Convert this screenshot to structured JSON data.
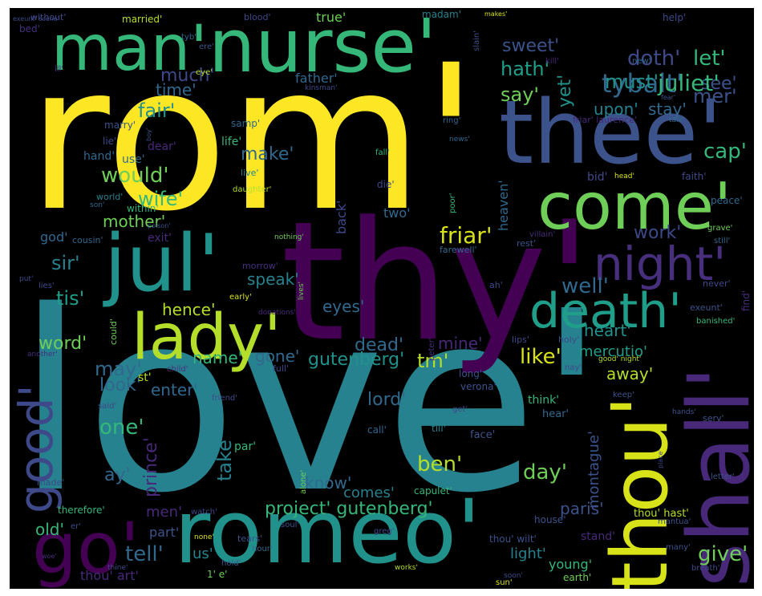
{
  "words": [
    {
      "id": "rom",
      "text": "rom'",
      "color": "#fde725"
    },
    {
      "id": "love",
      "text": "love'",
      "color": "#26828e"
    },
    {
      "id": "thy",
      "text": "thy'",
      "color": "#440154"
    },
    {
      "id": "nurse",
      "text": "nurse'",
      "color": "#35b779"
    },
    {
      "id": "man",
      "text": "man'",
      "color": "#35b779"
    },
    {
      "id": "thee",
      "text": "thee'",
      "color": "#3b528b"
    },
    {
      "id": "come",
      "text": "come'",
      "color": "#6ece58"
    },
    {
      "id": "jul",
      "text": "jul'",
      "color": "#21918c"
    },
    {
      "id": "lady",
      "text": "lady'",
      "color": "#b5de2b"
    },
    {
      "id": "night",
      "text": "night'",
      "color": "#472f7d"
    },
    {
      "id": "death",
      "text": "death'",
      "color": "#1f9e89"
    },
    {
      "id": "romeo",
      "text": "romeo'",
      "color": "#21918c"
    },
    {
      "id": "go",
      "text": "go'",
      "color": "#440154"
    },
    {
      "id": "thou",
      "text": "thou'",
      "color": "#d8e219"
    },
    {
      "id": "shall",
      "text": "shall'",
      "color": "#482878"
    },
    {
      "id": "good",
      "text": "good'",
      "color": "#3e4989"
    },
    {
      "id": "doth",
      "text": "doth'",
      "color": "#3e4989"
    },
    {
      "id": "let",
      "text": "let'",
      "color": "#35b779"
    },
    {
      "id": "tybalt",
      "text": "tybalt'",
      "color": "#31688e"
    },
    {
      "id": "sweet",
      "text": "sweet'",
      "color": "#3b528b"
    },
    {
      "id": "see",
      "text": "see'",
      "color": "#3b528b"
    },
    {
      "id": "hath",
      "text": "hath'",
      "color": "#1f9e89"
    },
    {
      "id": "juliet",
      "text": "juliet'",
      "color": "#35b779"
    },
    {
      "id": "much",
      "text": "much'",
      "color": "#3e4989"
    },
    {
      "id": "must",
      "text": "must'",
      "color": "#21918c"
    },
    {
      "id": "time",
      "text": "time'",
      "color": "#31688e"
    },
    {
      "id": "mer",
      "text": "mer'",
      "color": "#3b528b"
    },
    {
      "id": "say",
      "text": "say'",
      "color": "#6ece58"
    },
    {
      "id": "upon",
      "text": "upon'",
      "color": "#26828e"
    },
    {
      "id": "stay",
      "text": "stay'",
      "color": "#31688e"
    },
    {
      "id": "yet",
      "text": "yet'",
      "color": "#21918c"
    },
    {
      "id": "fair",
      "text": "fair'",
      "color": "#21918c"
    },
    {
      "id": "cap",
      "text": "cap'",
      "color": "#35b779"
    },
    {
      "id": "make",
      "text": "make'",
      "color": "#31688e"
    },
    {
      "id": "would",
      "text": "would'",
      "color": "#6ece58"
    },
    {
      "id": "wife",
      "text": "wife'",
      "color": "#35b779"
    },
    {
      "id": "mother",
      "text": "mother'",
      "color": "#6ece58"
    },
    {
      "id": "friar",
      "text": "friar'",
      "color": "#d8e219"
    },
    {
      "id": "work",
      "text": "work'",
      "color": "#3e4989"
    },
    {
      "id": "sir",
      "text": "sir'",
      "color": "#26828e"
    },
    {
      "id": "tis",
      "text": "tis'",
      "color": "#1f9e89"
    },
    {
      "id": "speak",
      "text": "speak'",
      "color": "#26828e"
    },
    {
      "id": "well",
      "text": "well'",
      "color": "#31688e"
    },
    {
      "id": "hence",
      "text": "hence'",
      "color": "#b5de2b"
    },
    {
      "id": "eyes",
      "text": "eyes'",
      "color": "#31688e"
    },
    {
      "id": "heart",
      "text": "heart'",
      "color": "#21918c"
    },
    {
      "id": "dead",
      "text": "dead'",
      "color": "#31688e"
    },
    {
      "id": "mine",
      "text": "mine'",
      "color": "#482878"
    },
    {
      "id": "word",
      "text": "word'",
      "color": "#6ece58"
    },
    {
      "id": "name",
      "text": "name'",
      "color": "#35b779"
    },
    {
      "id": "gone",
      "text": "gone'",
      "color": "#31688e"
    },
    {
      "id": "gutenberg1",
      "text": "gutenberg'",
      "color": "#21918c"
    },
    {
      "id": "tm",
      "text": "tm'",
      "color": "#b5de2b"
    },
    {
      "id": "like",
      "text": "like'",
      "color": "#d8e219"
    },
    {
      "id": "mercutio",
      "text": "mercutio'",
      "color": "#1f9e89"
    },
    {
      "id": "may",
      "text": "may'",
      "color": "#31688e"
    },
    {
      "id": "look",
      "text": "look'",
      "color": "#31688e"
    },
    {
      "id": "enter",
      "text": "enter'",
      "color": "#31688e"
    },
    {
      "id": "away",
      "text": "away'",
      "color": "#b5de2b"
    },
    {
      "id": "lord",
      "text": "lord'",
      "color": "#31688e"
    },
    {
      "id": "one",
      "text": "one'",
      "color": "#35b779"
    },
    {
      "id": "take",
      "text": "take'",
      "color": "#26828e"
    },
    {
      "id": "ben",
      "text": "ben'",
      "color": "#b5de2b"
    },
    {
      "id": "day",
      "text": "day'",
      "color": "#6ece58"
    },
    {
      "id": "prince",
      "text": "prince'",
      "color": "#482878"
    },
    {
      "id": "ay",
      "text": "ay'",
      "color": "#31688e"
    },
    {
      "id": "know",
      "text": "know'",
      "color": "#31688e"
    },
    {
      "id": "comes",
      "text": "comes'",
      "color": "#26828e"
    },
    {
      "id": "montague",
      "text": "montague'",
      "color": "#3b528b"
    },
    {
      "id": "project",
      "text": "project' gutenberg'",
      "color": "#35b779"
    },
    {
      "id": "paris",
      "text": "paris'",
      "color": "#3b528b"
    },
    {
      "id": "tell",
      "text": "tell'",
      "color": "#31688e"
    },
    {
      "id": "us",
      "text": "us'",
      "color": "#26828e"
    },
    {
      "id": "give",
      "text": "give'",
      "color": "#6ece58"
    },
    {
      "id": "light",
      "text": "light'",
      "color": "#26828e"
    },
    {
      "id": "young",
      "text": "young'",
      "color": "#35b779"
    },
    {
      "id": "old",
      "text": "old'",
      "color": "#35b779"
    },
    {
      "id": "part",
      "text": "part'",
      "color": "#3b528b"
    },
    {
      "id": "thouart",
      "text": "thou' art'",
      "color": "#482878"
    },
    {
      "id": "men",
      "text": "men'",
      "color": "#482878"
    },
    {
      "id": "back",
      "text": "back'",
      "color": "#3e4989"
    },
    {
      "id": "two",
      "text": "two'",
      "color": "#31688e"
    },
    {
      "id": "exit",
      "text": "exit'",
      "color": "#482878"
    },
    {
      "id": "god",
      "text": "god'",
      "color": "#31688e"
    },
    {
      "id": "st",
      "text": "st'",
      "color": "#b5de2b"
    },
    {
      "id": "heaven",
      "text": "heaven'",
      "color": "#31688e"
    },
    {
      "id": "father",
      "text": "father'",
      "color": "#31688e"
    },
    {
      "id": "hand",
      "text": "hand'",
      "color": "#31688e"
    },
    {
      "id": "dear",
      "text": "dear'",
      "color": "#482878"
    },
    {
      "id": "use",
      "text": "use'",
      "color": "#31688e"
    },
    {
      "id": "life",
      "text": "life'",
      "color": "#35b779"
    },
    {
      "id": "lie",
      "text": "lie'",
      "color": "#3e4989"
    },
    {
      "id": "marry",
      "text": "marry'",
      "color": "#3b528b"
    },
    {
      "id": "within",
      "text": "within'",
      "color": "#35b779"
    },
    {
      "id": "true",
      "text": "true'",
      "color": "#6ece58"
    },
    {
      "id": "madam",
      "text": "madam'",
      "color": "#26828e"
    },
    {
      "id": "married",
      "text": "married'",
      "color": "#b5de2b"
    },
    {
      "id": "blood",
      "text": "blood'",
      "color": "#3e4989"
    },
    {
      "id": "without",
      "text": "without'",
      "color": "#3e4989"
    },
    {
      "id": "bed",
      "text": "bed'",
      "color": "#472f7d"
    },
    {
      "id": "tyb",
      "text": "tyb'",
      "color": "#31688e"
    },
    {
      "id": "ere",
      "text": "ere'",
      "color": "#3b528b"
    },
    {
      "id": "help",
      "text": "help'",
      "color": "#3e4989"
    },
    {
      "id": "makes",
      "text": "makes'",
      "color": "#d8e219"
    },
    {
      "id": "slain",
      "text": "slain'",
      "color": "#3b528b"
    },
    {
      "id": "kill",
      "text": "kill'",
      "color": "#482878"
    },
    {
      "id": "new",
      "text": "new'",
      "color": "#31688e"
    },
    {
      "id": "fear",
      "text": "fear'",
      "color": "#3b528b"
    },
    {
      "id": "ill",
      "text": "ill'",
      "color": "#472f7d"
    },
    {
      "id": "eye",
      "text": "eye'",
      "color": "#b5de2b"
    },
    {
      "id": "kinsman",
      "text": "kinsman'",
      "color": "#3e4989"
    },
    {
      "id": "talk",
      "text": "talk'",
      "color": "#31688e"
    },
    {
      "id": "samp",
      "text": "samp'",
      "color": "#31688e"
    },
    {
      "id": "ring",
      "text": "ring'",
      "color": "#31688e"
    },
    {
      "id": "friarlaurence",
      "text": "friar' laurence'",
      "color": "#482878"
    },
    {
      "id": "boy",
      "text": "boy'",
      "color": "#3b528b"
    },
    {
      "id": "news",
      "text": "news'",
      "color": "#31688e"
    },
    {
      "id": "fall",
      "text": "fall'",
      "color": "#35b779"
    },
    {
      "id": "live",
      "text": "live'",
      "color": "#26828e"
    },
    {
      "id": "die",
      "text": "die'",
      "color": "#3e4989"
    },
    {
      "id": "daughter",
      "text": "daughter'",
      "color": "#b5de2b"
    },
    {
      "id": "bid",
      "text": "bid'",
      "color": "#3e4989"
    },
    {
      "id": "head",
      "text": "head'",
      "color": "#d8e219"
    },
    {
      "id": "faith",
      "text": "faith'",
      "color": "#3e4989"
    },
    {
      "id": "peace",
      "text": "peace'",
      "color": "#31688e"
    },
    {
      "id": "world",
      "text": "world'",
      "color": "#26828e"
    },
    {
      "id": "son",
      "text": "son'",
      "color": "#31688e"
    },
    {
      "id": "poor",
      "text": "poor'",
      "color": "#35b779"
    },
    {
      "id": "poison",
      "text": "poison'",
      "color": "#3b528b"
    },
    {
      "id": "villain",
      "text": "villain'",
      "color": "#472f7d"
    },
    {
      "id": "rest",
      "text": "rest'",
      "color": "#3b528b"
    },
    {
      "id": "grave",
      "text": "grave'",
      "color": "#6ece58"
    },
    {
      "id": "still",
      "text": "still'",
      "color": "#31688e"
    },
    {
      "id": "cousin",
      "text": "cousin'",
      "color": "#31688e"
    },
    {
      "id": "nothing",
      "text": "nothing'",
      "color": "#6ece58"
    },
    {
      "id": "farewell",
      "text": "farewell'",
      "color": "#31688e"
    },
    {
      "id": "morrow",
      "text": "morrow'",
      "color": "#472f7d"
    },
    {
      "id": "put",
      "text": "put'",
      "color": "#3e4989"
    },
    {
      "id": "lies",
      "text": "lies'",
      "color": "#3e4989"
    },
    {
      "id": "lives",
      "text": "lives'",
      "color": "#6ece58"
    },
    {
      "id": "early",
      "text": "early'",
      "color": "#d8e219"
    },
    {
      "id": "donations",
      "text": "donations'",
      "color": "#482878"
    },
    {
      "id": "ah",
      "text": "ah'",
      "color": "#3e4989"
    },
    {
      "id": "never",
      "text": "never'",
      "color": "#3e4989"
    },
    {
      "id": "find",
      "text": "find'",
      "color": "#472f7d"
    },
    {
      "id": "exeunt",
      "text": "exeunt'",
      "color": "#3b528b"
    },
    {
      "id": "banished",
      "text": "banished'",
      "color": "#35b779"
    },
    {
      "id": "could",
      "text": "could'",
      "color": "#6ece58"
    },
    {
      "id": "another",
      "text": "another'",
      "color": "#472f7d"
    },
    {
      "id": "child",
      "text": "child'",
      "color": "#472f7d"
    },
    {
      "id": "holy",
      "text": "holy'",
      "color": "#3e4989"
    },
    {
      "id": "lips",
      "text": "lips'",
      "color": "#3e4989"
    },
    {
      "id": "peter",
      "text": "peter'",
      "color": "#472f7d"
    },
    {
      "id": "full",
      "text": "full'",
      "color": "#3e4989"
    },
    {
      "id": "nay",
      "text": "nay'",
      "color": "#3e4989"
    },
    {
      "id": "goodnight",
      "text": "good' night'",
      "color": "#b5de2b"
    },
    {
      "id": "long",
      "text": "long'",
      "color": "#3b528b"
    },
    {
      "id": "verona",
      "text": "verona'",
      "color": "#3b528b"
    },
    {
      "id": "said",
      "text": "said'",
      "color": "#3e4989"
    },
    {
      "id": "friend",
      "text": "friend'",
      "color": "#3e4989"
    },
    {
      "id": "get",
      "text": "get'",
      "color": "#3e4989"
    },
    {
      "id": "think",
      "text": "think'",
      "color": "#35b779"
    },
    {
      "id": "keep",
      "text": "keep'",
      "color": "#3b528b"
    },
    {
      "id": "hear",
      "text": "hear'",
      "color": "#31688e"
    },
    {
      "id": "hands",
      "text": "hands'",
      "color": "#3b528b"
    },
    {
      "id": "serv",
      "text": "serv'",
      "color": "#3b528b"
    },
    {
      "id": "call",
      "text": "call'",
      "color": "#31688e"
    },
    {
      "id": "till",
      "text": "till'",
      "color": "#26828e"
    },
    {
      "id": "place",
      "text": "place'",
      "color": "#3e4989"
    },
    {
      "id": "letter",
      "text": "letter'",
      "color": "#3b528b"
    },
    {
      "id": "face",
      "text": "face'",
      "color": "#3b528b"
    },
    {
      "id": "par",
      "text": "par'",
      "color": "#35b779"
    },
    {
      "id": "alone",
      "text": "alone'",
      "color": "#6ece58"
    },
    {
      "id": "made",
      "text": "made'",
      "color": "#3e4989"
    },
    {
      "id": "capulet",
      "text": "capulet'",
      "color": "#35b779"
    },
    {
      "id": "therefore",
      "text": "therefore'",
      "color": "#35b779"
    },
    {
      "id": "watch",
      "text": "watch'",
      "color": "#3e4989"
    },
    {
      "id": "soul",
      "text": "soul'",
      "color": "#3b528b"
    },
    {
      "id": "tears",
      "text": "tears'",
      "color": "#3b528b"
    },
    {
      "id": "thouhast",
      "text": "thou' hast'",
      "color": "#b5de2b"
    },
    {
      "id": "house",
      "text": "house'",
      "color": "#3b528b"
    },
    {
      "id": "mantua",
      "text": "mantua'",
      "color": "#3b528b"
    },
    {
      "id": "er",
      "text": "er'",
      "color": "#3e4989"
    },
    {
      "id": "none",
      "text": "none'",
      "color": "#d8e219"
    },
    {
      "id": "hour",
      "text": "hour'",
      "color": "#31688e"
    },
    {
      "id": "greg",
      "text": "greg'",
      "color": "#3e4989"
    },
    {
      "id": "thouwilt",
      "text": "thou' wilt'",
      "color": "#3b528b"
    },
    {
      "id": "stand",
      "text": "stand'",
      "color": "#482878"
    },
    {
      "id": "many",
      "text": "many'",
      "color": "#3b528b"
    },
    {
      "id": "woe",
      "text": "woe'",
      "color": "#472f7d"
    },
    {
      "id": "thine",
      "text": "thine'",
      "color": "#3e4989"
    },
    {
      "id": "hold",
      "text": "hold'",
      "color": "#3b528b"
    },
    {
      "id": "one_e",
      "text": "1' e'",
      "color": "#6ece58"
    },
    {
      "id": "works",
      "text": "works'",
      "color": "#b5de2b"
    },
    {
      "id": "soon",
      "text": "soon'",
      "color": "#3e4989"
    },
    {
      "id": "sun",
      "text": "sun'",
      "color": "#d8e219"
    },
    {
      "id": "earth",
      "text": "earth'",
      "color": "#6ece58"
    },
    {
      "id": "breath",
      "text": "breath'",
      "color": "#3e4989"
    },
    {
      "id": "exeuntscene",
      "text": "exeunt' scene'",
      "color": "#3e4989"
    }
  ]
}
